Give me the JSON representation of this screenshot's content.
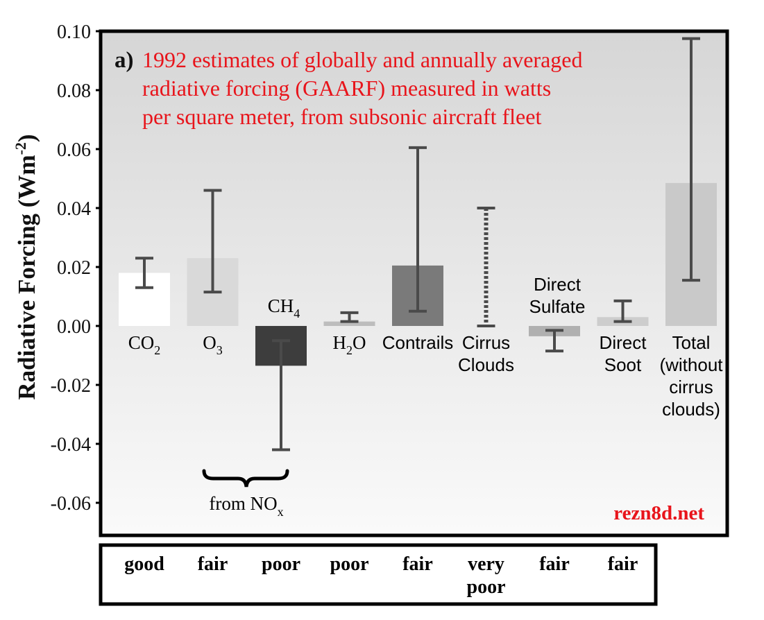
{
  "chart_data": {
    "type": "bar",
    "panel_label": "a)",
    "title_lines": [
      "1992 estimates of globally and annually averaged",
      "radiative forcing (GAARF) measured in watts",
      "per square meter, from subsonic aircraft fleet"
    ],
    "ylabel": "Radiative Forcing (Wm",
    "ylabel_sup": "-2",
    "ylabel_close": ")",
    "ylim": [
      -0.07,
      0.1
    ],
    "yticks": [
      "0.10",
      "0.08",
      "0.06",
      "0.04",
      "0.02",
      "0.00",
      "-0.02",
      "-0.04",
      "-0.06"
    ],
    "grid": false,
    "categories": [
      {
        "lines": [
          "CO",
          "2"
        ],
        "value": 0.018,
        "err_low": 0.013,
        "err_high": 0.023,
        "color": "#ffffff",
        "err_style": "solid",
        "label_side": "below"
      },
      {
        "lines": [
          "O",
          "3"
        ],
        "value": 0.023,
        "err_low": 0.0115,
        "err_high": 0.046,
        "color": "#d9d9d9",
        "err_style": "solid",
        "label_side": "below"
      },
      {
        "lines": [
          "CH",
          "4"
        ],
        "value": -0.0135,
        "err_low": -0.042,
        "err_high": -0.005,
        "color": "#3d3d3d",
        "err_style": "solid",
        "label_side": "above"
      },
      {
        "lines": [
          "H",
          "2",
          "O"
        ],
        "value": 0.0015,
        "err_low": 0.0015,
        "err_high": 0.0045,
        "color": "#bdbdbd",
        "err_style": "solid",
        "label_side": "below"
      },
      {
        "lines": [
          "Contrails"
        ],
        "value": 0.0205,
        "err_low": 0.005,
        "err_high": 0.0605,
        "color": "#7a7a7a",
        "err_style": "solid",
        "label_side": "below"
      },
      {
        "lines": [
          "Cirrus",
          "Clouds"
        ],
        "value": null,
        "err_low": 0.0,
        "err_high": 0.04,
        "color": "#4d4d4d",
        "err_style": "dashed",
        "label_side": "below"
      },
      {
        "lines": [
          "Direct",
          "Sulfate"
        ],
        "value": -0.0035,
        "err_low": -0.0085,
        "err_high": -0.0015,
        "color": "#b0b0b0",
        "err_style": "solid",
        "label_side": "above"
      },
      {
        "lines": [
          "Direct",
          "Soot"
        ],
        "value": 0.003,
        "err_low": 0.0015,
        "err_high": 0.0085,
        "color": "#cdcdcd",
        "err_style": "solid",
        "label_side": "below"
      },
      {
        "lines": [
          "Total",
          "(without",
          "cirrus",
          "clouds)"
        ],
        "value": 0.0485,
        "err_low": 0.0155,
        "err_high": 0.0975,
        "color": "#c9c9c9",
        "err_style": "solid",
        "label_side": "below"
      }
    ],
    "bracket_label": "from NO",
    "bracket_label_sub": "x",
    "watermark": "rezn8d.net",
    "understanding_levels": [
      "good",
      "fair",
      "poor",
      "poor",
      "fair",
      "very poor",
      "fair",
      "fair"
    ]
  },
  "colors": {
    "title": "#e8141b",
    "watermark": "#e8141b",
    "axis": "#000000",
    "error_bar": "#4a4a4a",
    "bg_top": "#d6d6d6",
    "bg_bottom": "#fafafa"
  }
}
